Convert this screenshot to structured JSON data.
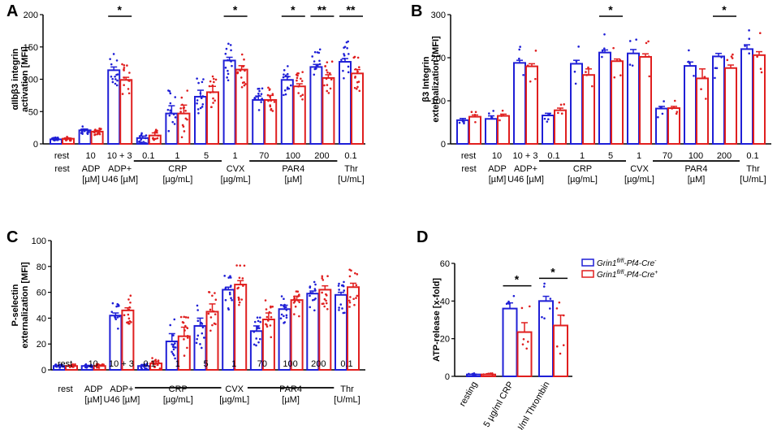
{
  "chart_data": [
    {
      "type": "bar",
      "panel": "A",
      "ylabel_lines": [
        "αIIbβ3 integrin",
        "activation [MFI]"
      ],
      "ylim": [
        0,
        200
      ],
      "yticks": [
        0,
        50,
        100,
        150,
        200
      ],
      "series_colors": [
        "#1f1fd6",
        "#e01f1f"
      ],
      "categories": [
        "rest",
        "10",
        "10 + 3",
        "0.1",
        "1",
        "5",
        "1",
        "70",
        "100",
        "200",
        "0.1"
      ],
      "series": [
        {
          "name": "Grin1fl/fl-Pf4-Cre-",
          "values": [
            7,
            21,
            114,
            9,
            47,
            73,
            129,
            68,
            99,
            119,
            127
          ]
        },
        {
          "name": "Grin1fl/fl-Pf4-Cre+",
          "values": [
            8,
            19,
            99,
            13,
            47,
            80,
            115,
            68,
            89,
            102,
            109
          ]
        }
      ],
      "errors": [
        [
          1,
          2,
          5,
          3,
          12,
          10,
          5,
          6,
          5,
          4,
          5
        ],
        [
          1,
          2,
          4,
          4,
          13,
          9,
          6,
          7,
          4,
          5,
          6
        ]
      ],
      "significance": [
        {
          "category": 2,
          "label": "*"
        },
        {
          "category": 6,
          "label": "*"
        },
        {
          "category": 8,
          "label": "*"
        },
        {
          "category": 9,
          "label": "**"
        },
        {
          "category": 10,
          "label": "**"
        }
      ],
      "groups": [
        {
          "first": 0,
          "last": 0,
          "lines": [
            "rest"
          ],
          "bar": false
        },
        {
          "first": 1,
          "last": 1,
          "lines": [
            "ADP",
            "[µM]"
          ],
          "bar": false
        },
        {
          "first": 2,
          "last": 2,
          "lines": [
            "ADP+",
            "U46 [µM]"
          ],
          "bar": false
        },
        {
          "first": 3,
          "last": 5,
          "lines": [
            "CRP",
            "[µg/mL]"
          ],
          "bar": true
        },
        {
          "first": 6,
          "last": 6,
          "lines": [
            "CVX",
            "[µg/mL]"
          ],
          "bar": false
        },
        {
          "first": 7,
          "last": 9,
          "lines": [
            "PAR4",
            "[µM]"
          ],
          "bar": true
        },
        {
          "first": 10,
          "last": 10,
          "lines": [
            "Thr",
            "[U/mL]"
          ],
          "bar": false
        }
      ]
    },
    {
      "type": "bar",
      "panel": "B",
      "ylabel_lines": [
        "β3 Integrin",
        "externalization [MFI]"
      ],
      "ylim": [
        0,
        300
      ],
      "yticks": [
        0,
        100,
        200,
        300
      ],
      "series_colors": [
        "#1f1fd6",
        "#e01f1f"
      ],
      "categories": [
        "rest",
        "10",
        "10 + 3",
        "0.1",
        "1",
        "5",
        "1",
        "70",
        "100",
        "200",
        "0.1"
      ],
      "series": [
        {
          "name": "Grin1fl/fl-Pf4-Cre-",
          "values": [
            55,
            58,
            188,
            66,
            186,
            212,
            210,
            82,
            181,
            203,
            220
          ]
        },
        {
          "name": "Grin1fl/fl-Pf4-Cre+",
          "values": [
            63,
            65,
            180,
            78,
            160,
            192,
            202,
            83,
            152,
            176,
            206
          ]
        }
      ],
      "errors": [
        [
          4,
          7,
          6,
          5,
          8,
          6,
          9,
          5,
          9,
          7,
          10
        ],
        [
          4,
          4,
          6,
          5,
          14,
          5,
          7,
          4,
          22,
          7,
          8
        ]
      ],
      "significance": [
        {
          "category": 5,
          "label": "*"
        },
        {
          "category": 9,
          "label": "*"
        }
      ],
      "groups": [
        {
          "first": 0,
          "last": 0,
          "lines": [
            "rest"
          ],
          "bar": false
        },
        {
          "first": 1,
          "last": 1,
          "lines": [
            "ADP",
            "[µM]"
          ],
          "bar": false
        },
        {
          "first": 2,
          "last": 2,
          "lines": [
            "ADP+",
            "U46 [µM]"
          ],
          "bar": false
        },
        {
          "first": 3,
          "last": 5,
          "lines": [
            "CRP",
            "[µg/mL]"
          ],
          "bar": true
        },
        {
          "first": 6,
          "last": 6,
          "lines": [
            "CVX",
            "[µg/mL]"
          ],
          "bar": false
        },
        {
          "first": 7,
          "last": 9,
          "lines": [
            "PAR4",
            "[µM]"
          ],
          "bar": true
        },
        {
          "first": 10,
          "last": 10,
          "lines": [
            "Thr",
            "[U/mL]"
          ],
          "bar": false
        }
      ]
    },
    {
      "type": "bar",
      "panel": "C",
      "ylabel_lines": [
        "P-selectin",
        "externalization [MFI]"
      ],
      "ylim": [
        0,
        100
      ],
      "yticks": [
        0,
        20,
        40,
        60,
        80,
        100
      ],
      "series_colors": [
        "#1f1fd6",
        "#e01f1f"
      ],
      "categories": [
        "rest",
        "10",
        "10 + 3",
        "0.1",
        "1",
        "5",
        "1",
        "70",
        "100",
        "200",
        "0.1"
      ],
      "series": [
        {
          "name": "Grin1fl/fl-Pf4-Cre-",
          "values": [
            3,
            3,
            42,
            3,
            22,
            34,
            62,
            30,
            47,
            59,
            58
          ]
        },
        {
          "name": "Grin1fl/fl-Pf4-Cre+",
          "values": [
            3,
            3,
            46,
            5,
            26,
            45,
            66,
            39,
            54,
            62,
            64
          ]
        }
      ],
      "errors": [
        [
          0.5,
          0.5,
          2,
          1,
          6,
          6,
          2,
          4,
          3,
          2,
          2
        ],
        [
          0.5,
          0.5,
          2,
          1.5,
          7,
          6,
          3,
          5,
          3,
          3,
          3
        ]
      ],
      "significance": [],
      "groups": [
        {
          "first": 0,
          "last": 0,
          "lines": [
            "rest"
          ],
          "bar": false
        },
        {
          "first": 1,
          "last": 1,
          "lines": [
            "ADP",
            "[µM]"
          ],
          "bar": false
        },
        {
          "first": 2,
          "last": 2,
          "lines": [
            "ADP+",
            "U46 [µM]"
          ],
          "bar": false
        },
        {
          "first": 3,
          "last": 5,
          "lines": [
            "CRP",
            "[µg/mL]"
          ],
          "bar": true
        },
        {
          "first": 6,
          "last": 6,
          "lines": [
            "CVX",
            "[µg/mL]"
          ],
          "bar": false
        },
        {
          "first": 7,
          "last": 9,
          "lines": [
            "PAR4",
            "[µM]"
          ],
          "bar": true
        },
        {
          "first": 10,
          "last": 10,
          "lines": [
            "Thr",
            "[U/mL]"
          ],
          "bar": false
        }
      ]
    },
    {
      "type": "bar",
      "panel": "D",
      "ylabel_lines": [
        "ATP-release [x-fold]"
      ],
      "ylim": [
        0,
        60
      ],
      "yticks": [
        0,
        20,
        40,
        60
      ],
      "series_colors": [
        "#1f1fd6",
        "#e01f1f"
      ],
      "categories": [
        "resting",
        "5 µg/ml CRP",
        "0.1 U/ml Thrombin"
      ],
      "series": [
        {
          "name": "Grin1fl/fl-Pf4-Cre-",
          "values": [
            1,
            36,
            40
          ]
        },
        {
          "name": "Grin1fl/fl-Pf4-Cre+",
          "values": [
            1,
            23.5,
            27
          ]
        }
      ],
      "errors": [
        [
          0.2,
          3,
          2.5
        ],
        [
          0.2,
          5,
          5.5
        ]
      ],
      "significance": [
        {
          "category": 1,
          "label": "*"
        },
        {
          "category": 2,
          "label": "*"
        }
      ],
      "legend": [
        {
          "base": "Grin1",
          "sup": "fl/fl",
          "tail": "-Pf4-Cre",
          "sign": "-"
        },
        {
          "base": "Grin1",
          "sup": "fl/fl",
          "tail": "-Pf4-Cre",
          "sign": "+"
        }
      ]
    }
  ]
}
